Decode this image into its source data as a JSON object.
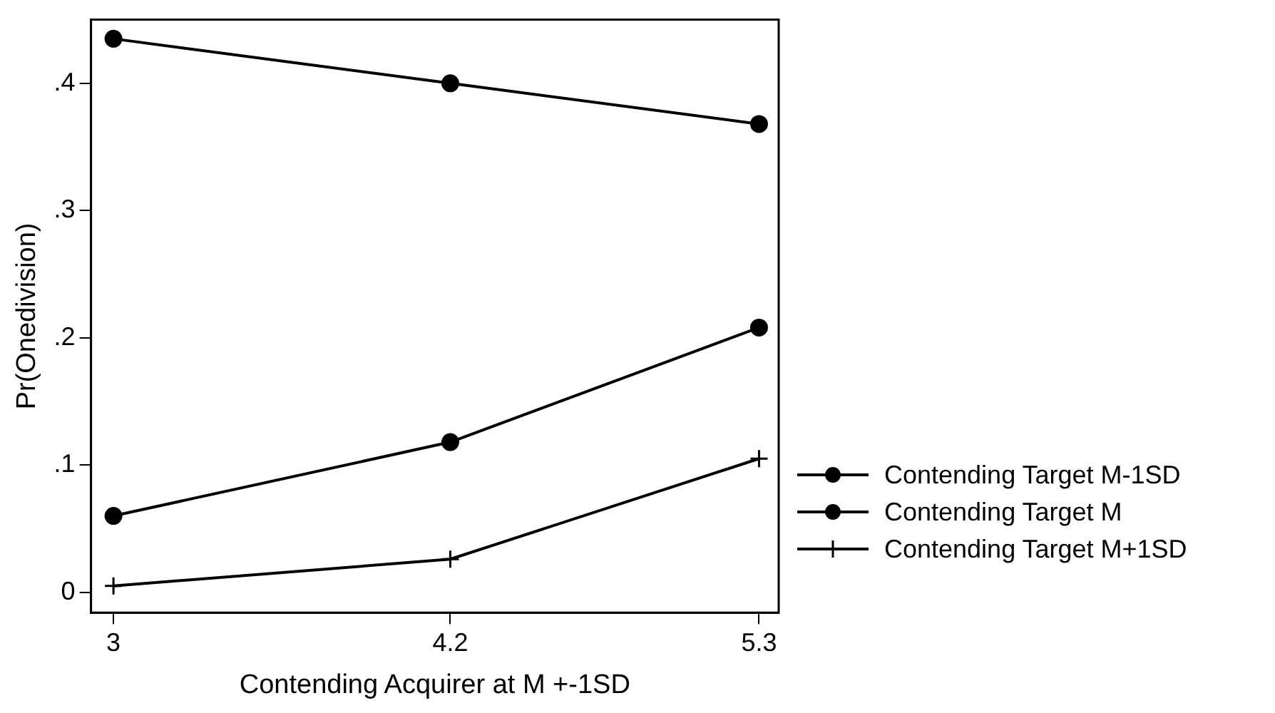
{
  "chart_data": {
    "type": "line",
    "xlabel": "Contending Acquirer at M +-1SD",
    "ylabel": "Pr(Onedivision)",
    "x": [
      3,
      4.2,
      5.3
    ],
    "series": [
      {
        "name": "Contending Target M-1SD",
        "color": "#000000",
        "marker": "circle",
        "values": [
          0.435,
          0.4,
          0.368
        ]
      },
      {
        "name": "Contending Target M",
        "color": "#000000",
        "marker": "circle",
        "values": [
          0.06,
          0.118,
          0.208
        ]
      },
      {
        "name": "Contending Target M+1SD",
        "color": "#000000",
        "marker": "cross",
        "values": [
          0.005,
          0.026,
          0.105
        ]
      }
    ],
    "xlim": [
      2.92,
      5.37
    ],
    "xticks": [
      3,
      4.2,
      5.3
    ],
    "ylim": [
      -0.016,
      0.45
    ],
    "yticks": [
      0,
      {
        "value": 0.1,
        "label": ".1"
      },
      {
        "value": 0.2,
        "label": ".2"
      },
      {
        "value": 0.3,
        "label": ".3"
      },
      {
        "value": 0.4,
        "label": ".4"
      }
    ],
    "grid": false,
    "legend": "right",
    "line_style": "solid"
  }
}
